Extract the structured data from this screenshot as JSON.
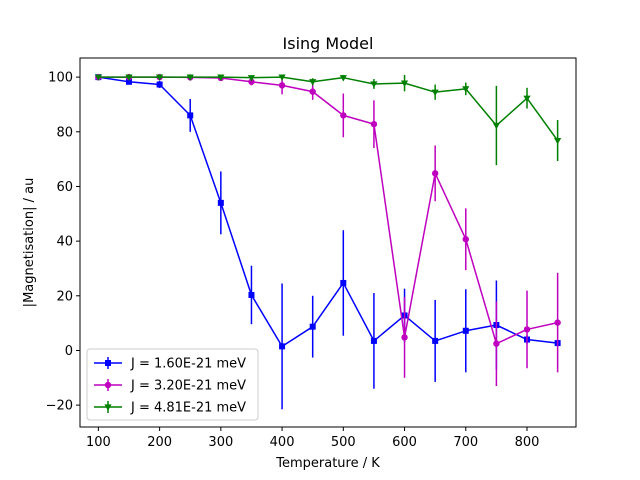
{
  "chart_data": {
    "type": "line",
    "title": "Ising Model",
    "xlabel": "Temperature / K",
    "ylabel": "|Magnetisation| / au",
    "xlim": [
      70,
      880
    ],
    "ylim": [
      -28,
      107
    ],
    "xticks": [
      100,
      200,
      300,
      400,
      500,
      600,
      700,
      800
    ],
    "yticks": [
      -20,
      0,
      20,
      40,
      60,
      80,
      100
    ],
    "ytick_labels": [
      "−20",
      "0",
      "20",
      "40",
      "60",
      "80",
      "100"
    ],
    "grid": false,
    "legend_position": "lower-left",
    "x": [
      100,
      150,
      200,
      250,
      300,
      350,
      400,
      450,
      500,
      550,
      600,
      650,
      700,
      750,
      800,
      850
    ],
    "series": [
      {
        "name": "J = 1.60E-21 meV",
        "color": "#0000ff",
        "marker": "square",
        "values": [
          100,
          98.3,
          97.3,
          86.0,
          54.0,
          20.3,
          1.5,
          8.7,
          24.7,
          3.5,
          12.8,
          3.5,
          7.2,
          9.3,
          4.0,
          2.7
        ],
        "errors": [
          1.0,
          1.0,
          1.3,
          6.0,
          11.5,
          10.7,
          23.0,
          11.3,
          19.3,
          17.5,
          9.8,
          15.0,
          15.2,
          16.3,
          1.5,
          1.3
        ]
      },
      {
        "name": "J = 3.20E-21 meV",
        "color": "#bf00bf",
        "marker": "circle",
        "values": [
          100,
          100,
          100,
          99.9,
          99.7,
          98.3,
          97.0,
          94.7,
          86.0,
          82.8,
          4.8,
          64.8,
          40.7,
          2.5,
          7.7,
          10.2
        ],
        "errors": [
          0.3,
          0.3,
          0.3,
          0.3,
          0.5,
          1.3,
          3.3,
          3.0,
          8.0,
          8.7,
          14.8,
          10.2,
          11.3,
          15.5,
          14.2,
          18.2
        ]
      },
      {
        "name": "J = 4.81E-21 meV",
        "color": "#008000",
        "marker": "triangle-down",
        "values": [
          100,
          100,
          100,
          100,
          100,
          99.8,
          100,
          98.3,
          99.8,
          97.5,
          97.8,
          94.5,
          95.7,
          82.3,
          92.3,
          76.8
        ],
        "errors": [
          0.2,
          0.2,
          0.3,
          0.3,
          0.3,
          0.5,
          0.7,
          1.3,
          1.0,
          1.8,
          3.0,
          2.8,
          2.3,
          14.5,
          3.8,
          7.5
        ]
      }
    ]
  }
}
